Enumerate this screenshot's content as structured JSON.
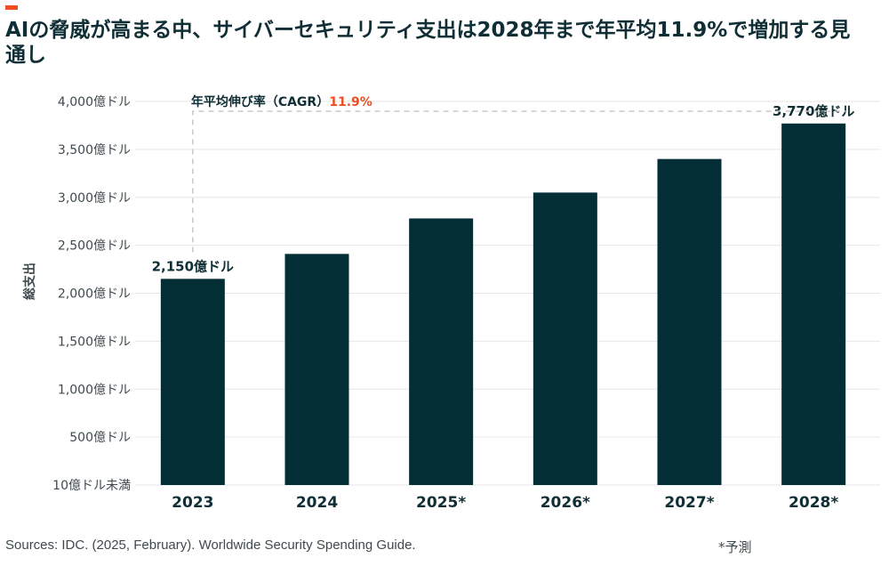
{
  "title": "AIの脅威が高まる中、サイバーセキュリティ支出は2028年まで年平均11.9%で増加する見通し",
  "source": "Sources: IDC. (2025, February). Worldwide Security Spending Guide.",
  "footnote": "*予測",
  "colors": {
    "bar": "#032e36",
    "accent": "#f04e23",
    "grid": "#e6e6e6",
    "dashed": "#c8c8c8"
  },
  "chart_data": {
    "type": "bar",
    "title": "AIの脅威が高まる中、サイバーセキュリティ支出は2028年まで年平均11.9%で増加する見通し",
    "ylabel": "総支出",
    "xlabel": "",
    "unit": "億ドル",
    "categories": [
      "2023",
      "2024",
      "2025*",
      "2026*",
      "2027*",
      "2028*"
    ],
    "values": [
      2150,
      2410,
      2780,
      3050,
      3400,
      3770
    ],
    "ylim": [
      0,
      4000
    ],
    "yticks": [
      0,
      500,
      1000,
      1500,
      2000,
      2500,
      3000,
      3500,
      4000
    ],
    "ytick_labels": [
      "10億ドル未満",
      "500億ドル",
      "1,000億ドル",
      "1,500億ドル",
      "2,000億ドル",
      "2,500億ドル",
      "3,000億ドル",
      "3,500億ドル",
      "4,000億ドル"
    ],
    "data_labels": [
      {
        "index": 0,
        "text": "2,150億ドル"
      },
      {
        "index": 5,
        "text": "3,770億ドル"
      }
    ],
    "annotation": {
      "label": "年平均伸び率（CAGR）",
      "value": "11.9%"
    },
    "grid": true,
    "legend": "none"
  }
}
